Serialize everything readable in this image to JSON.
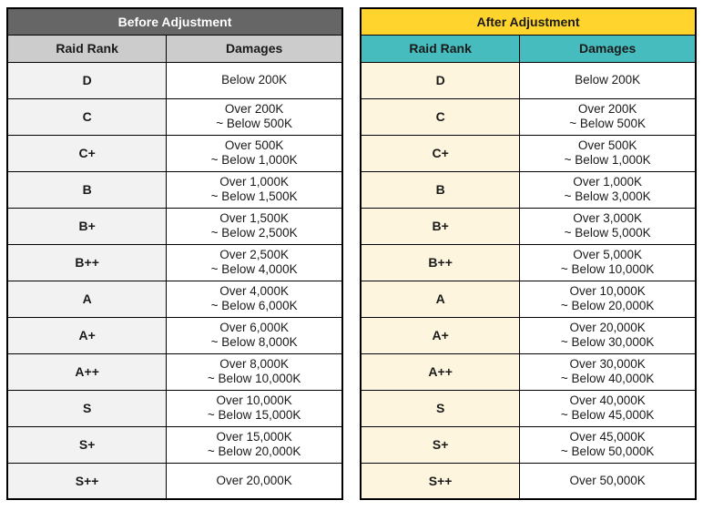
{
  "chart_data": [
    {
      "type": "table",
      "title": "Before Adjustment",
      "columns": [
        "Raid Rank",
        "Damages"
      ],
      "theme": {
        "title_bg": "#666666",
        "title_text": "#ffffff",
        "header_bg": "#cccccc",
        "header_text": "#1a1a1a",
        "rank_bg": "#f2f2f2"
      },
      "rows": [
        {
          "rank": "D",
          "damages": [
            "Below 200K"
          ]
        },
        {
          "rank": "C",
          "damages": [
            "Over 200K",
            "~ Below 500K"
          ]
        },
        {
          "rank": "C+",
          "damages": [
            "Over 500K",
            "~ Below 1,000K"
          ]
        },
        {
          "rank": "B",
          "damages": [
            "Over 1,000K",
            "~ Below 1,500K"
          ]
        },
        {
          "rank": "B+",
          "damages": [
            "Over 1,500K",
            "~ Below 2,500K"
          ]
        },
        {
          "rank": "B++",
          "damages": [
            "Over 2,500K",
            "~ Below 4,000K"
          ]
        },
        {
          "rank": "A",
          "damages": [
            "Over 4,000K",
            "~ Below 6,000K"
          ]
        },
        {
          "rank": "A+",
          "damages": [
            "Over 6,000K",
            "~ Below 8,000K"
          ]
        },
        {
          "rank": "A++",
          "damages": [
            "Over 8,000K",
            "~ Below 10,000K"
          ]
        },
        {
          "rank": "S",
          "damages": [
            "Over 10,000K",
            "~ Below 15,000K"
          ]
        },
        {
          "rank": "S+",
          "damages": [
            "Over 15,000K",
            "~ Below 20,000K"
          ]
        },
        {
          "rank": "S++",
          "damages": [
            "Over 20,000K"
          ]
        }
      ]
    },
    {
      "type": "table",
      "title": "After Adjustment",
      "columns": [
        "Raid Rank",
        "Damages"
      ],
      "theme": {
        "title_bg": "#ffd42d",
        "title_text": "#1a1a1a",
        "header_bg": "#46bcbe",
        "header_text": "#1a1a1a",
        "rank_bg": "#fdf5dd"
      },
      "rows": [
        {
          "rank": "D",
          "damages": [
            "Below 200K"
          ]
        },
        {
          "rank": "C",
          "damages": [
            "Over 200K",
            "~ Below 500K"
          ]
        },
        {
          "rank": "C+",
          "damages": [
            "Over 500K",
            "~ Below 1,000K"
          ]
        },
        {
          "rank": "B",
          "damages": [
            "Over 1,000K",
            "~ Below 3,000K"
          ]
        },
        {
          "rank": "B+",
          "damages": [
            "Over 3,000K",
            "~ Below 5,000K"
          ]
        },
        {
          "rank": "B++",
          "damages": [
            "Over 5,000K",
            "~ Below 10,000K"
          ]
        },
        {
          "rank": "A",
          "damages": [
            "Over 10,000K",
            "~ Below 20,000K"
          ]
        },
        {
          "rank": "A+",
          "damages": [
            "Over 20,000K",
            "~ Below 30,000K"
          ]
        },
        {
          "rank": "A++",
          "damages": [
            "Over 30,000K",
            "~ Below 40,000K"
          ]
        },
        {
          "rank": "S",
          "damages": [
            "Over 40,000K",
            "~ Below 45,000K"
          ]
        },
        {
          "rank": "S+",
          "damages": [
            "Over 45,000K",
            "~ Below 50,000K"
          ]
        },
        {
          "rank": "S++",
          "damages": [
            "Over 50,000K"
          ]
        }
      ]
    }
  ]
}
